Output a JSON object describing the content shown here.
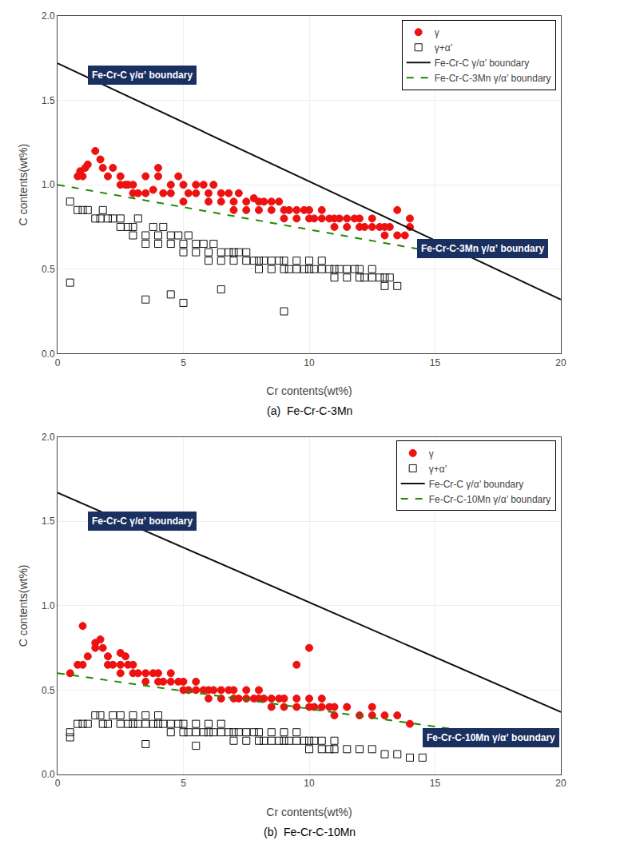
{
  "chart_data": [
    {
      "type": "scatter",
      "title": "(a)  Fe-Cr-C-3Mn",
      "xlabel": "Cr contents(wt%)",
      "ylabel": "C contents(wt%)",
      "xlim": [
        0,
        20
      ],
      "ylim": [
        0,
        2
      ],
      "xticks": [
        0,
        5,
        10,
        15,
        20
      ],
      "yticks": [
        {
          "value": 0,
          "label": "0.0"
        },
        0.5,
        {
          "value": 1.0,
          "label": "1.0"
        },
        1.5,
        {
          "value": 2.0,
          "label": "2.0"
        }
      ],
      "grid": true,
      "legend": "upper right",
      "series": [
        {
          "name": "γ",
          "type": "scatter",
          "marker": "circle",
          "color": "#ee1111",
          "x": [
            0.8,
            0.9,
            1.0,
            1.1,
            1.2,
            1.5,
            1.7,
            1.8,
            2.0,
            2.2,
            2.5,
            2.5,
            2.7,
            2.8,
            3.0,
            3.0,
            3.2,
            3.5,
            3.5,
            3.8,
            4.0,
            4.0,
            4.2,
            4.5,
            4.5,
            4.8,
            5.0,
            5.0,
            5.2,
            5.5,
            5.5,
            5.8,
            6.0,
            6.0,
            6.2,
            6.5,
            6.5,
            6.8,
            7.0,
            7.0,
            7.2,
            7.5,
            7.5,
            7.8,
            8.0,
            8.0,
            8.2,
            8.5,
            8.5,
            8.8,
            9.0,
            9.0,
            9.2,
            9.5,
            9.5,
            9.8,
            10.0,
            10.0,
            10.2,
            10.5,
            10.5,
            10.8,
            11.0,
            11.0,
            11.2,
            11.5,
            11.5,
            11.8,
            12.0,
            12.0,
            12.2,
            12.5,
            12.5,
            12.8,
            13.0,
            13.0,
            13.2,
            13.5,
            13.5,
            13.8,
            14.0,
            14.0
          ],
          "values": [
            1.05,
            1.08,
            1.05,
            1.1,
            1.12,
            1.2,
            1.15,
            1.1,
            1.05,
            1.1,
            1.05,
            1.0,
            1.0,
            1.0,
            0.95,
            1.0,
            0.95,
            0.95,
            1.05,
            0.97,
            1.05,
            1.1,
            0.95,
            0.95,
            1.0,
            1.05,
            0.9,
            1.0,
            0.95,
            0.95,
            1.0,
            1.0,
            0.9,
            0.95,
            1.0,
            0.9,
            0.95,
            0.95,
            0.9,
            0.85,
            0.95,
            0.9,
            0.85,
            0.92,
            0.85,
            0.9,
            0.9,
            0.9,
            0.85,
            0.9,
            0.85,
            0.8,
            0.85,
            0.8,
            0.85,
            0.85,
            0.8,
            0.85,
            0.8,
            0.8,
            0.85,
            0.8,
            0.8,
            0.75,
            0.8,
            0.8,
            0.75,
            0.8,
            0.75,
            0.8,
            0.75,
            0.75,
            0.8,
            0.75,
            0.75,
            0.7,
            0.75,
            0.7,
            0.85,
            0.7,
            0.75,
            0.8
          ]
        },
        {
          "name": "γ+α’",
          "type": "scatter",
          "marker": "open square",
          "color": "#111111",
          "x": [
            0.5,
            0.8,
            1.0,
            1.2,
            1.5,
            1.7,
            1.8,
            2.0,
            2.2,
            2.5,
            2.5,
            2.8,
            3.0,
            3.0,
            3.2,
            3.5,
            3.5,
            3.8,
            4.0,
            4.0,
            4.2,
            4.5,
            4.5,
            4.8,
            5.0,
            5.0,
            5.2,
            5.5,
            5.5,
            5.8,
            6.0,
            6.0,
            6.2,
            6.5,
            6.5,
            6.8,
            7.0,
            7.0,
            7.2,
            7.5,
            7.5,
            7.8,
            8.0,
            8.0,
            8.2,
            8.5,
            8.5,
            8.8,
            9.0,
            9.0,
            9.2,
            9.5,
            9.5,
            9.8,
            10.0,
            10.0,
            10.2,
            10.5,
            10.5,
            10.8,
            11.0,
            11.0,
            11.2,
            11.5,
            11.5,
            11.8,
            12.0,
            12.0,
            12.2,
            12.5,
            12.5,
            12.8,
            13.0,
            13.0,
            13.2,
            13.5,
            5.0,
            9.0,
            0.5,
            4.5,
            3.5,
            6.5
          ],
          "values": [
            0.9,
            0.85,
            0.85,
            0.85,
            0.8,
            0.8,
            0.85,
            0.8,
            0.8,
            0.75,
            0.8,
            0.75,
            0.75,
            0.7,
            0.8,
            0.7,
            0.65,
            0.75,
            0.7,
            0.65,
            0.75,
            0.65,
            0.7,
            0.7,
            0.65,
            0.6,
            0.7,
            0.65,
            0.6,
            0.65,
            0.6,
            0.55,
            0.65,
            0.6,
            0.55,
            0.6,
            0.6,
            0.55,
            0.6,
            0.55,
            0.6,
            0.55,
            0.55,
            0.5,
            0.55,
            0.55,
            0.5,
            0.55,
            0.5,
            0.55,
            0.5,
            0.5,
            0.55,
            0.5,
            0.5,
            0.55,
            0.5,
            0.5,
            0.55,
            0.5,
            0.5,
            0.45,
            0.5,
            0.5,
            0.45,
            0.5,
            0.45,
            0.5,
            0.45,
            0.45,
            0.5,
            0.45,
            0.45,
            0.4,
            0.45,
            0.4,
            0.3,
            0.25,
            0.42,
            0.35,
            0.32,
            0.38
          ]
        },
        {
          "name": "Fe-Cr-C γ/α’ boundary",
          "type": "line",
          "line_style": "solid",
          "color": "#111111",
          "x": [
            0,
            20
          ],
          "values": [
            1.72,
            0.32
          ]
        },
        {
          "name": "Fe-Cr-C-3Mn γ/α’ boundary",
          "type": "line",
          "line_style": "dashed",
          "color": "#228800",
          "x": [
            0,
            14.5
          ],
          "values": [
            1.0,
            0.615
          ]
        }
      ],
      "annotations": [
        {
          "text": "Fe-Cr-C γ/α’ boundary",
          "x": 1.2,
          "y": 1.65
        },
        {
          "text": "Fe-Cr-C-3Mn γ/α’ boundary",
          "x": 14.3,
          "y": 0.62
        }
      ]
    },
    {
      "type": "scatter",
      "title": "(b)  Fe-Cr-C-10Mn",
      "xlabel": "Cr contents(wt%)",
      "ylabel": "C contents(wt%)",
      "xlim": [
        0,
        20
      ],
      "ylim": [
        0,
        2
      ],
      "xticks": [
        0,
        5,
        10,
        15,
        20
      ],
      "yticks": [
        {
          "value": 0,
          "label": "0.0"
        },
        0.5,
        {
          "value": 1.0,
          "label": "1.0"
        },
        1.5,
        {
          "value": 2.0,
          "label": "2.0"
        }
      ],
      "grid": true,
      "legend": "upper right",
      "series": [
        {
          "name": "γ",
          "type": "scatter",
          "marker": "circle",
          "color": "#ee1111",
          "x": [
            0.5,
            0.8,
            1.0,
            1.2,
            1.5,
            1.7,
            1.8,
            2.0,
            2.0,
            2.2,
            2.5,
            2.5,
            2.7,
            2.8,
            3.0,
            3.0,
            3.2,
            3.5,
            3.5,
            3.8,
            4.0,
            4.0,
            4.2,
            4.5,
            4.5,
            4.8,
            5.0,
            5.0,
            5.2,
            5.5,
            5.5,
            5.8,
            6.0,
            6.0,
            6.2,
            6.5,
            6.5,
            6.8,
            7.0,
            7.0,
            7.2,
            7.5,
            7.5,
            7.8,
            8.0,
            8.0,
            8.2,
            8.5,
            8.5,
            8.8,
            9.0,
            9.0,
            9.5,
            9.5,
            10.0,
            10.0,
            10.2,
            10.5,
            10.5,
            10.8,
            11.0,
            11.0,
            11.5,
            12.0,
            12.5,
            12.5,
            13.0,
            13.5,
            14.0,
            1.0,
            1.5,
            2.5,
            9.5,
            10.0
          ],
          "values": [
            0.6,
            0.65,
            0.65,
            0.7,
            0.75,
            0.8,
            0.75,
            0.7,
            0.65,
            0.65,
            0.6,
            0.65,
            0.7,
            0.65,
            0.6,
            0.65,
            0.6,
            0.6,
            0.55,
            0.6,
            0.55,
            0.6,
            0.55,
            0.55,
            0.6,
            0.55,
            0.5,
            0.55,
            0.5,
            0.5,
            0.55,
            0.5,
            0.5,
            0.45,
            0.5,
            0.45,
            0.5,
            0.5,
            0.45,
            0.5,
            0.45,
            0.45,
            0.5,
            0.45,
            0.45,
            0.5,
            0.45,
            0.4,
            0.45,
            0.45,
            0.4,
            0.45,
            0.4,
            0.45,
            0.4,
            0.45,
            0.4,
            0.4,
            0.45,
            0.4,
            0.4,
            0.35,
            0.4,
            0.35,
            0.35,
            0.4,
            0.35,
            0.35,
            0.3,
            0.88,
            0.78,
            0.72,
            0.65,
            0.75
          ]
        },
        {
          "name": "γ+α’",
          "type": "scatter",
          "marker": "open square",
          "color": "#111111",
          "x": [
            0.5,
            0.8,
            1.0,
            1.2,
            1.5,
            1.7,
            1.8,
            2.0,
            2.2,
            2.5,
            2.5,
            2.8,
            3.0,
            3.0,
            3.2,
            3.5,
            3.5,
            3.8,
            4.0,
            4.0,
            4.2,
            4.5,
            4.5,
            4.8,
            5.0,
            5.0,
            5.2,
            5.5,
            5.5,
            5.8,
            6.0,
            6.0,
            6.2,
            6.5,
            6.5,
            6.8,
            7.0,
            7.0,
            7.2,
            7.5,
            7.5,
            7.8,
            8.0,
            8.0,
            8.2,
            8.5,
            8.5,
            8.8,
            9.0,
            9.0,
            9.2,
            9.5,
            9.5,
            9.8,
            10.0,
            10.0,
            10.2,
            10.5,
            10.5,
            10.8,
            11.0,
            11.0,
            11.5,
            12.0,
            12.5,
            13.0,
            13.5,
            14.0,
            14.5,
            0.5,
            3.5,
            5.5
          ],
          "values": [
            0.25,
            0.3,
            0.3,
            0.3,
            0.35,
            0.35,
            0.3,
            0.3,
            0.35,
            0.3,
            0.35,
            0.3,
            0.3,
            0.35,
            0.3,
            0.3,
            0.35,
            0.3,
            0.3,
            0.35,
            0.3,
            0.3,
            0.25,
            0.3,
            0.3,
            0.25,
            0.25,
            0.25,
            0.3,
            0.25,
            0.25,
            0.3,
            0.25,
            0.25,
            0.3,
            0.25,
            0.25,
            0.2,
            0.25,
            0.25,
            0.2,
            0.25,
            0.2,
            0.25,
            0.2,
            0.2,
            0.25,
            0.2,
            0.2,
            0.25,
            0.2,
            0.2,
            0.25,
            0.2,
            0.2,
            0.15,
            0.2,
            0.15,
            0.2,
            0.15,
            0.15,
            0.2,
            0.15,
            0.15,
            0.15,
            0.12,
            0.12,
            0.1,
            0.1,
            0.22,
            0.18,
            0.17
          ]
        },
        {
          "name": "Fe-Cr-C γ/α’ boundary",
          "type": "line",
          "line_style": "solid",
          "color": "#111111",
          "x": [
            0,
            20
          ],
          "values": [
            1.67,
            0.37
          ]
        },
        {
          "name": "Fe-Cr-C-10Mn γ/α’ boundary",
          "type": "line",
          "line_style": "dashed",
          "color": "#228800",
          "x": [
            0,
            18.5
          ],
          "values": [
            0.6,
            0.21
          ]
        }
      ],
      "annotations": [
        {
          "text": "Fe-Cr-C γ/α’ boundary",
          "x": 1.2,
          "y": 1.5
        },
        {
          "text": "Fe-Cr-C-10Mn γ/α’ boundary",
          "x": 14.5,
          "y": 0.22
        }
      ]
    }
  ]
}
